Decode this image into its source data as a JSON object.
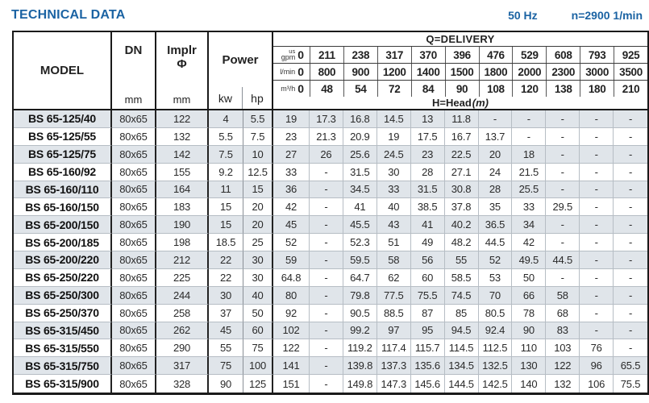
{
  "page": {
    "title": "TECHNICAL DATA",
    "frequency": "50 Hz",
    "speed": "n=2900 1/min"
  },
  "colors": {
    "accent_blue": "#1b63a3",
    "row_stripe": "#e0e5ea",
    "border_dark": "#1a1a1a",
    "border_light": "#b6bdc4"
  },
  "table": {
    "col_headers": {
      "model": "MODEL",
      "dn": "DN",
      "dn_unit": "mm",
      "impeller": "Implr",
      "impeller_symbol": "Φ",
      "impeller_unit": "mm",
      "power": "Power",
      "power_kw": "kw",
      "power_hp": "hp",
      "delivery": "Q=DELIVERY",
      "head": "H=Head",
      "head_unit": "(m)",
      "unit_us_top": "us",
      "unit_us": "gpm",
      "unit_lmin": "l/min",
      "unit_m3h": "m³/h"
    },
    "delivery": {
      "us_gpm": [
        "0",
        "211",
        "238",
        "317",
        "370",
        "396",
        "476",
        "529",
        "608",
        "793",
        "925"
      ],
      "l_min": [
        "0",
        "800",
        "900",
        "1200",
        "1400",
        "1500",
        "1800",
        "2000",
        "2300",
        "3000",
        "3500"
      ],
      "m3_h": [
        "0",
        "48",
        "54",
        "72",
        "84",
        "90",
        "108",
        "120",
        "138",
        "180",
        "210"
      ]
    },
    "rows": [
      {
        "model": "BS 65-125/40",
        "dn": "80x65",
        "implr": "122",
        "kw": "4",
        "hp": "5.5",
        "head": [
          "19",
          "17.3",
          "16.8",
          "14.5",
          "13",
          "11.8",
          "-",
          "-",
          "-",
          "-",
          "-"
        ]
      },
      {
        "model": "BS 65-125/55",
        "dn": "80x65",
        "implr": "132",
        "kw": "5.5",
        "hp": "7.5",
        "head": [
          "23",
          "21.3",
          "20.9",
          "19",
          "17.5",
          "16.7",
          "13.7",
          "-",
          "-",
          "-",
          "-"
        ]
      },
      {
        "model": "BS 65-125/75",
        "dn": "80x65",
        "implr": "142",
        "kw": "7.5",
        "hp": "10",
        "head": [
          "27",
          "26",
          "25.6",
          "24.5",
          "23",
          "22.5",
          "20",
          "18",
          "-",
          "-",
          "-"
        ]
      },
      {
        "model": "BS 65-160/92",
        "dn": "80x65",
        "implr": "155",
        "kw": "9.2",
        "hp": "12.5",
        "head": [
          "33",
          "-",
          "31.5",
          "30",
          "28",
          "27.1",
          "24",
          "21.5",
          "-",
          "-",
          "-"
        ]
      },
      {
        "model": "BS 65-160/110",
        "dn": "80x65",
        "implr": "164",
        "kw": "11",
        "hp": "15",
        "head": [
          "36",
          "-",
          "34.5",
          "33",
          "31.5",
          "30.8",
          "28",
          "25.5",
          "-",
          "-",
          "-"
        ]
      },
      {
        "model": "BS 65-160/150",
        "dn": "80x65",
        "implr": "183",
        "kw": "15",
        "hp": "20",
        "head": [
          "42",
          "-",
          "41",
          "40",
          "38.5",
          "37.8",
          "35",
          "33",
          "29.5",
          "-",
          "-"
        ]
      },
      {
        "model": "BS 65-200/150",
        "dn": "80x65",
        "implr": "190",
        "kw": "15",
        "hp": "20",
        "head": [
          "45",
          "-",
          "45.5",
          "43",
          "41",
          "40.2",
          "36.5",
          "34",
          "-",
          "-",
          "-"
        ]
      },
      {
        "model": "BS 65-200/185",
        "dn": "80x65",
        "implr": "198",
        "kw": "18.5",
        "hp": "25",
        "head": [
          "52",
          "-",
          "52.3",
          "51",
          "49",
          "48.2",
          "44.5",
          "42",
          "-",
          "-",
          "-"
        ]
      },
      {
        "model": "BS 65-200/220",
        "dn": "80x65",
        "implr": "212",
        "kw": "22",
        "hp": "30",
        "head": [
          "59",
          "-",
          "59.5",
          "58",
          "56",
          "55",
          "52",
          "49.5",
          "44.5",
          "-",
          "-"
        ]
      },
      {
        "model": "BS 65-250/220",
        "dn": "80x65",
        "implr": "225",
        "kw": "22",
        "hp": "30",
        "head": [
          "64.8",
          "-",
          "64.7",
          "62",
          "60",
          "58.5",
          "53",
          "50",
          "-",
          "-",
          "-"
        ]
      },
      {
        "model": "BS 65-250/300",
        "dn": "80x65",
        "implr": "244",
        "kw": "30",
        "hp": "40",
        "head": [
          "80",
          "-",
          "79.8",
          "77.5",
          "75.5",
          "74.5",
          "70",
          "66",
          "58",
          "-",
          "-"
        ]
      },
      {
        "model": "BS 65-250/370",
        "dn": "80x65",
        "implr": "258",
        "kw": "37",
        "hp": "50",
        "head": [
          "92",
          "-",
          "90.5",
          "88.5",
          "87",
          "85",
          "80.5",
          "78",
          "68",
          "-",
          "-"
        ]
      },
      {
        "model": "BS 65-315/450",
        "dn": "80x65",
        "implr": "262",
        "kw": "45",
        "hp": "60",
        "head": [
          "102",
          "-",
          "99.2",
          "97",
          "95",
          "94.5",
          "92.4",
          "90",
          "83",
          "-",
          "-"
        ]
      },
      {
        "model": "BS 65-315/550",
        "dn": "80x65",
        "implr": "290",
        "kw": "55",
        "hp": "75",
        "head": [
          "122",
          "-",
          "119.2",
          "117.4",
          "115.7",
          "114.5",
          "112.5",
          "110",
          "103",
          "76",
          "-"
        ]
      },
      {
        "model": "BS 65-315/750",
        "dn": "80x65",
        "implr": "317",
        "kw": "75",
        "hp": "100",
        "head": [
          "141",
          "-",
          "139.8",
          "137.3",
          "135.6",
          "134.5",
          "132.5",
          "130",
          "122",
          "96",
          "65.5"
        ]
      },
      {
        "model": "BS 65-315/900",
        "dn": "80x65",
        "implr": "328",
        "kw": "90",
        "hp": "125",
        "head": [
          "151",
          "-",
          "149.8",
          "147.3",
          "145.6",
          "144.5",
          "142.5",
          "140",
          "132",
          "106",
          "75.5"
        ]
      }
    ]
  }
}
